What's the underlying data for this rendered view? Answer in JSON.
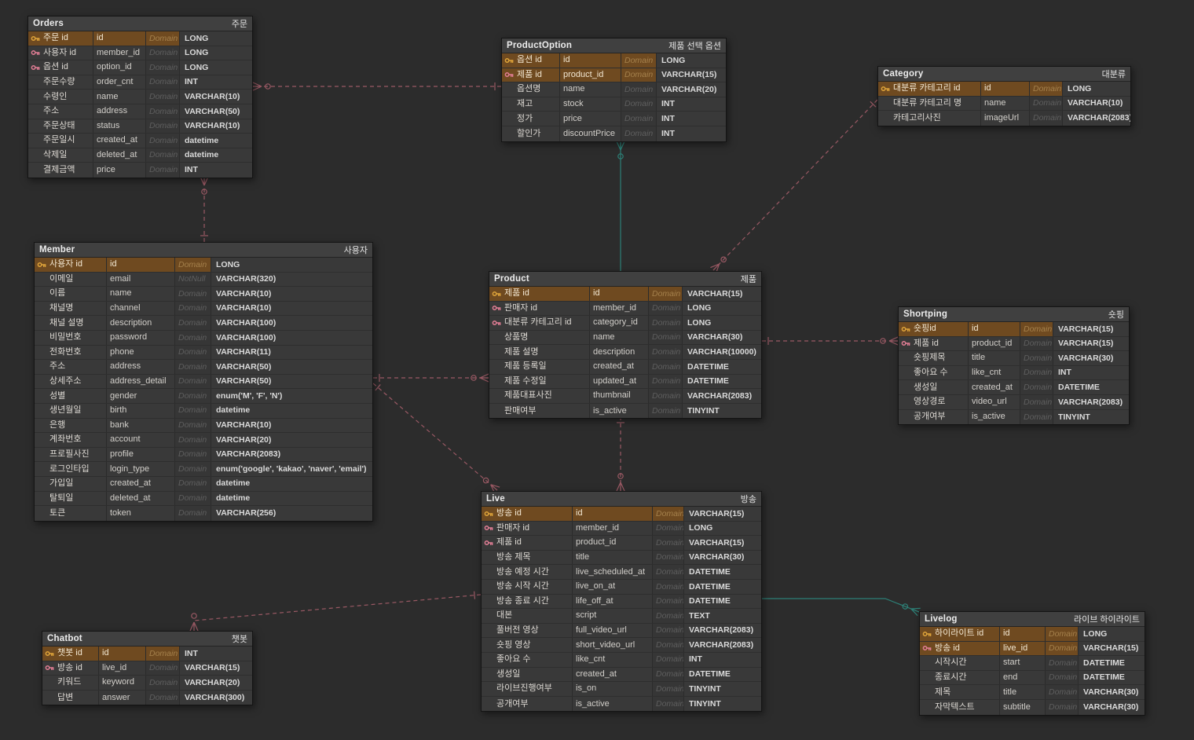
{
  "colors": {
    "canvas_bg": "#2c2c2c",
    "table_bg": "#393939",
    "table_header_bg": "#404040",
    "pk_row_bg": "#6f4a20",
    "pk_key": "#dfa43a",
    "fk_key": "#e27e95",
    "relationship_dashed": "#9a5964",
    "relationship_identifying": "#2d8077"
  },
  "tables": {
    "orders": {
      "name": "Orders",
      "alias": "주문",
      "columns": [
        {
          "ko": "주문 id",
          "col": "id",
          "dom": "Domain",
          "type": "LONG",
          "key": "pk"
        },
        {
          "ko": "사용자 id",
          "col": "member_id",
          "dom": "Domain",
          "type": "LONG",
          "key": "fk"
        },
        {
          "ko": "옵션 id",
          "col": "option_id",
          "dom": "Domain",
          "type": "LONG",
          "key": "fk"
        },
        {
          "ko": "주문수량",
          "col": "order_cnt",
          "dom": "Domain",
          "type": "INT"
        },
        {
          "ko": "수령인",
          "col": "name",
          "dom": "Domain",
          "type": "VARCHAR(10)"
        },
        {
          "ko": "주소",
          "col": "address",
          "dom": "Domain",
          "type": "VARCHAR(50)"
        },
        {
          "ko": "주문상태",
          "col": "status",
          "dom": "Domain",
          "type": "VARCHAR(10)"
        },
        {
          "ko": "주문일시",
          "col": "created_at",
          "dom": "Domain",
          "type": "datetime"
        },
        {
          "ko": "삭제일",
          "col": "deleted_at",
          "dom": "Domain",
          "type": "datetime"
        },
        {
          "ko": "결제금액",
          "col": "price",
          "dom": "Domain",
          "type": "INT"
        }
      ]
    },
    "productoption": {
      "name": "ProductOption",
      "alias": "제품 선택 옵션",
      "columns": [
        {
          "ko": "옵션 id",
          "col": "id",
          "dom": "Domain",
          "type": "LONG",
          "key": "pk"
        },
        {
          "ko": "제품 id",
          "col": "product_id",
          "dom": "Domain",
          "type": "VARCHAR(15)",
          "key": "pkfk"
        },
        {
          "ko": "옵션명",
          "col": "name",
          "dom": "Domain",
          "type": "VARCHAR(20)"
        },
        {
          "ko": "재고",
          "col": "stock",
          "dom": "Domain",
          "type": "INT"
        },
        {
          "ko": "정가",
          "col": "price",
          "dom": "Domain",
          "type": "INT"
        },
        {
          "ko": "할인가",
          "col": "discountPrice",
          "dom": "Domain",
          "type": "INT"
        }
      ]
    },
    "category": {
      "name": "Category",
      "alias": "대분류",
      "columns": [
        {
          "ko": "대분류 카테고리 id",
          "col": "id",
          "dom": "Domain",
          "type": "LONG",
          "key": "pk"
        },
        {
          "ko": "대분류 카테고리 명",
          "col": "name",
          "dom": "Domain",
          "type": "VARCHAR(10)"
        },
        {
          "ko": "카테고리사진",
          "col": "imageUrl",
          "dom": "Domain",
          "type": "VARCHAR(2083)"
        }
      ]
    },
    "member": {
      "name": "Member",
      "alias": "사용자",
      "columns": [
        {
          "ko": "사용자 id",
          "col": "id",
          "dom": "Domain",
          "type": "LONG",
          "key": "pk"
        },
        {
          "ko": "이메일",
          "col": "email",
          "dom": "NotNull",
          "type": "VARCHAR(320)"
        },
        {
          "ko": "이름",
          "col": "name",
          "dom": "Domain",
          "type": "VARCHAR(10)"
        },
        {
          "ko": "채널명",
          "col": "channel",
          "dom": "Domain",
          "type": "VARCHAR(10)"
        },
        {
          "ko": "채널 설명",
          "col": "description",
          "dom": "Domain",
          "type": "VARCHAR(100)"
        },
        {
          "ko": "비밀번호",
          "col": "password",
          "dom": "Domain",
          "type": "VARCHAR(100)"
        },
        {
          "ko": "전화번호",
          "col": "phone",
          "dom": "Domain",
          "type": "VARCHAR(11)"
        },
        {
          "ko": "주소",
          "col": "address",
          "dom": "Domain",
          "type": "VARCHAR(50)"
        },
        {
          "ko": "상세주소",
          "col": "address_detail",
          "dom": "Domain",
          "type": "VARCHAR(50)"
        },
        {
          "ko": "성별",
          "col": "gender",
          "dom": "Domain",
          "type": "enum('M', 'F', 'N')"
        },
        {
          "ko": "생년월일",
          "col": "birth",
          "dom": "Domain",
          "type": "datetime"
        },
        {
          "ko": "은행",
          "col": "bank",
          "dom": "Domain",
          "type": "VARCHAR(10)"
        },
        {
          "ko": "계좌번호",
          "col": "account",
          "dom": "Domain",
          "type": "VARCHAR(20)"
        },
        {
          "ko": "프로필사진",
          "col": "profile",
          "dom": "Domain",
          "type": "VARCHAR(2083)"
        },
        {
          "ko": "로그인타입",
          "col": "login_type",
          "dom": "Domain",
          "type": "enum('google', 'kakao', 'naver', 'email')"
        },
        {
          "ko": "가입일",
          "col": "created_at",
          "dom": "Domain",
          "type": "datetime"
        },
        {
          "ko": "탈퇴일",
          "col": "deleted_at",
          "dom": "Domain",
          "type": "datetime"
        },
        {
          "ko": "토큰",
          "col": "token",
          "dom": "Domain",
          "type": "VARCHAR(256)"
        }
      ]
    },
    "product": {
      "name": "Product",
      "alias": "제품",
      "columns": [
        {
          "ko": "제품 id",
          "col": "id",
          "dom": "Domain",
          "type": "VARCHAR(15)",
          "key": "pk"
        },
        {
          "ko": "판매자 id",
          "col": "member_id",
          "dom": "Domain",
          "type": "LONG",
          "key": "fk"
        },
        {
          "ko": "대분류 카테고리 id",
          "col": "category_id",
          "dom": "Domain",
          "type": "LONG",
          "key": "fk"
        },
        {
          "ko": "상품명",
          "col": "name",
          "dom": "Domain",
          "type": "VARCHAR(30)"
        },
        {
          "ko": "제품 설명",
          "col": "description",
          "dom": "Domain",
          "type": "VARCHAR(10000)"
        },
        {
          "ko": "제품 등록일",
          "col": "created_at",
          "dom": "Domain",
          "type": "DATETIME"
        },
        {
          "ko": "제품 수정일",
          "col": "updated_at",
          "dom": "Domain",
          "type": "DATETIME"
        },
        {
          "ko": "제품대표사진",
          "col": "thumbnail",
          "dom": "Domain",
          "type": "VARCHAR(2083)"
        },
        {
          "ko": "판매여부",
          "col": "is_active",
          "dom": "Domain",
          "type": "TINYINT"
        }
      ]
    },
    "shortping": {
      "name": "Shortping",
      "alias": "숏핑",
      "columns": [
        {
          "ko": "숏핑id",
          "col": "id",
          "dom": "Domain",
          "type": "VARCHAR(15)",
          "key": "pk"
        },
        {
          "ko": "제품 id",
          "col": "product_id",
          "dom": "Domain",
          "type": "VARCHAR(15)",
          "key": "fk"
        },
        {
          "ko": "숏핑제목",
          "col": "title",
          "dom": "Domain",
          "type": "VARCHAR(30)"
        },
        {
          "ko": "좋아요 수",
          "col": "like_cnt",
          "dom": "Domain",
          "type": "INT"
        },
        {
          "ko": "생성일",
          "col": "created_at",
          "dom": "Domain",
          "type": "DATETIME"
        },
        {
          "ko": "영상경로",
          "col": "video_url",
          "dom": "Domain",
          "type": "VARCHAR(2083)"
        },
        {
          "ko": "공개여부",
          "col": "is_active",
          "dom": "Domain",
          "type": "TINYINT"
        }
      ]
    },
    "live": {
      "name": "Live",
      "alias": "방송",
      "columns": [
        {
          "ko": "방송 id",
          "col": "id",
          "dom": "Domain",
          "type": "VARCHAR(15)",
          "key": "pk"
        },
        {
          "ko": "판매자 id",
          "col": "member_id",
          "dom": "Domain",
          "type": "LONG",
          "key": "fk"
        },
        {
          "ko": "제품 id",
          "col": "product_id",
          "dom": "Domain",
          "type": "VARCHAR(15)",
          "key": "fk"
        },
        {
          "ko": "방송 제목",
          "col": "title",
          "dom": "Domain",
          "type": "VARCHAR(30)"
        },
        {
          "ko": "방송 예정 시간",
          "col": "live_scheduled_at",
          "dom": "Domain",
          "type": "DATETIME"
        },
        {
          "ko": "방송 시작 시간",
          "col": "live_on_at",
          "dom": "Domain",
          "type": "DATETIME"
        },
        {
          "ko": "방송 종료 시간",
          "col": "life_off_at",
          "dom": "Domain",
          "type": "DATETIME"
        },
        {
          "ko": "대본",
          "col": "script",
          "dom": "Domain",
          "type": "TEXT"
        },
        {
          "ko": "풀버전 영상",
          "col": "full_video_url",
          "dom": "Domain",
          "type": "VARCHAR(2083)"
        },
        {
          "ko": "숏핑 영상",
          "col": "short_video_url",
          "dom": "Domain",
          "type": "VARCHAR(2083)"
        },
        {
          "ko": "좋아요 수",
          "col": "like_cnt",
          "dom": "Domain",
          "type": "INT"
        },
        {
          "ko": "생성일",
          "col": "created_at",
          "dom": "Domain",
          "type": "DATETIME"
        },
        {
          "ko": "라이브진행여부",
          "col": "is_on",
          "dom": "Domain",
          "type": "TINYINT"
        },
        {
          "ko": "공개여부",
          "col": "is_active",
          "dom": "Domain",
          "type": "TINYINT"
        }
      ]
    },
    "chatbot": {
      "name": "Chatbot",
      "alias": "챗봇",
      "columns": [
        {
          "ko": "챗봇 id",
          "col": "id",
          "dom": "Domain",
          "type": "INT",
          "key": "pk"
        },
        {
          "ko": "방송 id",
          "col": "live_id",
          "dom": "Domain",
          "type": "VARCHAR(15)",
          "key": "fk"
        },
        {
          "ko": "키워드",
          "col": "keyword",
          "dom": "Domain",
          "type": "VARCHAR(20)"
        },
        {
          "ko": "답변",
          "col": "answer",
          "dom": "Domain",
          "type": "VARCHAR(300)"
        }
      ]
    },
    "livelog": {
      "name": "Livelog",
      "alias": "라이브 하이라이트",
      "columns": [
        {
          "ko": "하이라이트 id",
          "col": "id",
          "dom": "Domain",
          "type": "LONG",
          "key": "pk"
        },
        {
          "ko": "방송 id",
          "col": "live_id",
          "dom": "Domain",
          "type": "VARCHAR(15)",
          "key": "pkfk"
        },
        {
          "ko": "시작시간",
          "col": "start",
          "dom": "Domain",
          "type": "DATETIME"
        },
        {
          "ko": "종료시간",
          "col": "end",
          "dom": "Domain",
          "type": "DATETIME"
        },
        {
          "ko": "제목",
          "col": "title",
          "dom": "Domain",
          "type": "VARCHAR(30)"
        },
        {
          "ko": "자막텍스트",
          "col": "subtitle",
          "dom": "Domain",
          "type": "VARCHAR(30)"
        }
      ]
    }
  },
  "relationships": [
    {
      "from": "ProductOption",
      "to": "Orders",
      "type": "non-identifying",
      "cardinality": "one-to-many"
    },
    {
      "from": "Member",
      "to": "Orders",
      "type": "non-identifying",
      "cardinality": "one-to-many"
    },
    {
      "from": "Product",
      "to": "ProductOption",
      "type": "identifying",
      "cardinality": "one-to-many"
    },
    {
      "from": "Category",
      "to": "Product",
      "type": "non-identifying",
      "cardinality": "one-to-many"
    },
    {
      "from": "Member",
      "to": "Product",
      "type": "non-identifying",
      "cardinality": "one-to-many"
    },
    {
      "from": "Product",
      "to": "Shortping",
      "type": "non-identifying",
      "cardinality": "one-to-many"
    },
    {
      "from": "Product",
      "to": "Live",
      "type": "non-identifying",
      "cardinality": "one-to-many"
    },
    {
      "from": "Member",
      "to": "Live",
      "type": "non-identifying",
      "cardinality": "one-to-many"
    },
    {
      "from": "Live",
      "to": "Chatbot",
      "type": "non-identifying",
      "cardinality": "one-to-many"
    },
    {
      "from": "Live",
      "to": "Livelog",
      "type": "identifying",
      "cardinality": "one-to-many"
    }
  ]
}
